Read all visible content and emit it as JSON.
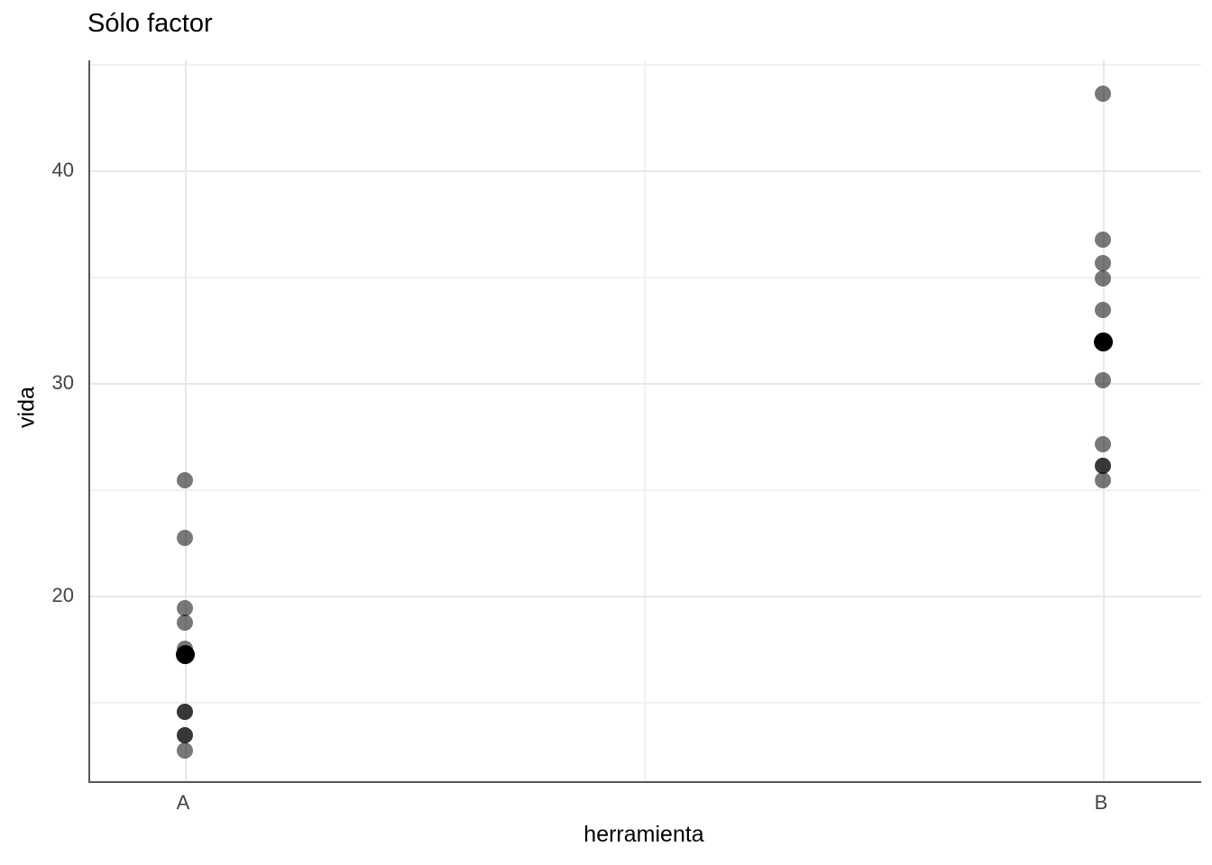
{
  "title": "Sólo factor",
  "axis": {
    "x_title": "herramienta",
    "y_title": "vida",
    "y_tick_labels": [
      "40",
      "30",
      "20"
    ],
    "x_tick_labels": [
      "A",
      "B"
    ]
  },
  "chart_data": {
    "type": "scatter",
    "title": "Sólo factor",
    "xlabel": "herramienta",
    "ylabel": "vida",
    "categories": [
      "A",
      "B"
    ],
    "ylim": [
      11.25,
      45.15
    ],
    "y_major_ticks": [
      20,
      30,
      40
    ],
    "y_minor_gridlines": [
      15,
      25,
      35,
      45
    ],
    "grid": true,
    "legend_position": "none",
    "series": [
      {
        "name": "observations-A",
        "category": "A",
        "role": "data",
        "values": [
          25.4,
          22.7,
          19.4,
          18.7,
          17.5,
          14.5,
          14.5,
          13.4,
          13.4,
          12.7
        ]
      },
      {
        "name": "observations-B",
        "category": "B",
        "role": "data",
        "values": [
          43.6,
          36.7,
          35.6,
          34.9,
          33.4,
          30.1,
          27.1,
          26.1,
          26.1,
          25.4
        ]
      },
      {
        "name": "mean-A",
        "category": "A",
        "role": "mean",
        "values": [
          17.2
        ]
      },
      {
        "name": "mean-B",
        "category": "B",
        "role": "mean",
        "values": [
          31.9
        ]
      }
    ],
    "colors": {
      "point": "rgba(0,0,0,0.53)",
      "mean_point": "#000000",
      "major_gridline": "#e8e8e8",
      "minor_gridline": "#f1f1f1",
      "axis_line": "#565656",
      "axis_text": "#434343",
      "title_text": "#000000"
    }
  }
}
